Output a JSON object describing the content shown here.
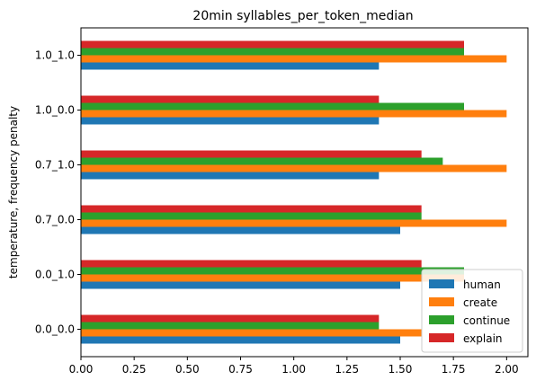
{
  "chart_data": {
    "type": "bar",
    "orientation": "horizontal",
    "title": "20min syllables_per_token_median",
    "xlabel": "",
    "ylabel": "temperature, frequency penalty",
    "xlim": [
      0,
      2.1
    ],
    "xticks": [
      "0.00",
      "0.25",
      "0.50",
      "0.75",
      "1.00",
      "1.25",
      "1.50",
      "1.75",
      "2.00"
    ],
    "xtick_values": [
      0,
      0.25,
      0.5,
      0.75,
      1.0,
      1.25,
      1.5,
      1.75,
      2.0
    ],
    "categories": [
      "0.0_0.0",
      "0.0_1.0",
      "0.7_0.0",
      "0.7_1.0",
      "1.0_0.0",
      "1.0_1.0"
    ],
    "series": [
      {
        "name": "human",
        "color": "#1f77b4",
        "values": [
          1.5,
          1.5,
          1.5,
          1.4,
          1.4,
          1.4
        ]
      },
      {
        "name": "create",
        "color": "#ff7f0e",
        "values": [
          1.6,
          1.8,
          2.0,
          2.0,
          2.0,
          2.0
        ]
      },
      {
        "name": "continue",
        "color": "#2ca02c",
        "values": [
          1.4,
          1.8,
          1.6,
          1.7,
          1.8,
          1.8
        ]
      },
      {
        "name": "explain",
        "color": "#d62728",
        "values": [
          1.4,
          1.6,
          1.6,
          1.6,
          1.4,
          1.8
        ]
      }
    ],
    "legend": {
      "placement": "bottom-right"
    },
    "grid": false
  }
}
